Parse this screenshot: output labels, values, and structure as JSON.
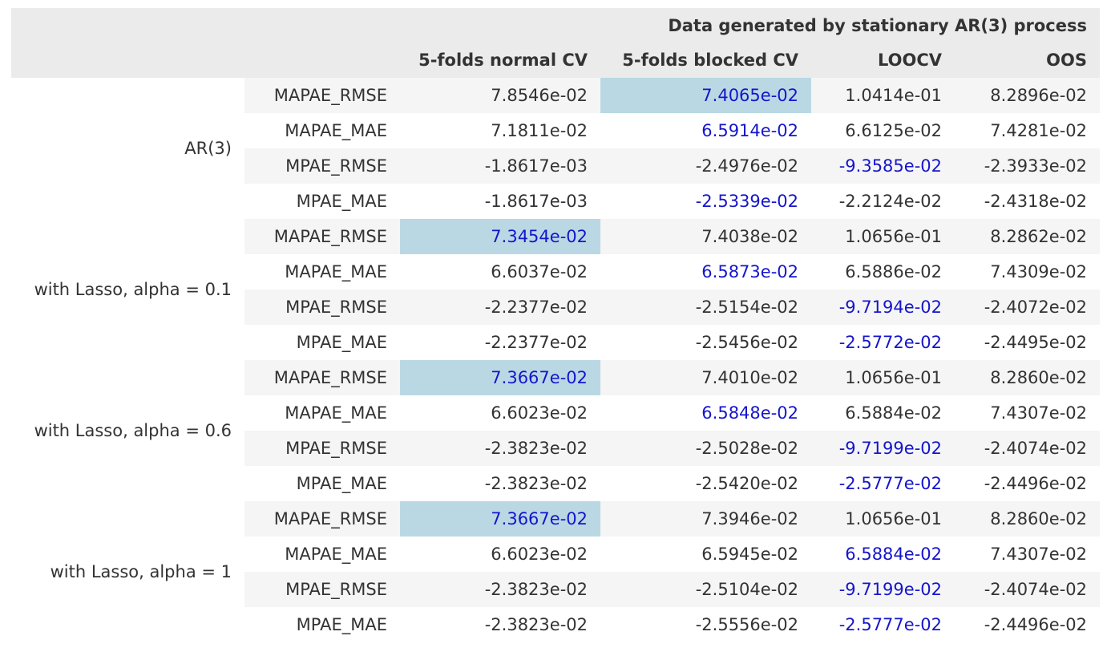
{
  "caption": "Data generated by stationary AR(3) process",
  "columns": [
    "5-folds normal CV",
    "5-folds blocked CV",
    "LOOCV",
    "OOS"
  ],
  "colors": {
    "highlight_bg": "#b9d8e4",
    "best_text": "#1515cc",
    "header_bg": "#ebebeb",
    "stripe_bg": "#f5f5f5"
  },
  "groups": [
    {
      "label": "AR(3)",
      "rows": [
        {
          "metric": "MAPAE_RMSE",
          "values": [
            "7.8546e-02",
            "7.4065e-02",
            "1.0414e-01",
            "8.2896e-02"
          ],
          "best": [
            false,
            true,
            false,
            false
          ],
          "highlight": [
            false,
            true,
            false,
            false
          ]
        },
        {
          "metric": "MAPAE_MAE",
          "values": [
            "7.1811e-02",
            "6.5914e-02",
            "6.6125e-02",
            "7.4281e-02"
          ],
          "best": [
            false,
            true,
            false,
            false
          ],
          "highlight": [
            false,
            false,
            false,
            false
          ]
        },
        {
          "metric": "MPAE_RMSE",
          "values": [
            "-1.8617e-03",
            "-2.4976e-02",
            "-9.3585e-02",
            "-2.3933e-02"
          ],
          "best": [
            false,
            false,
            true,
            false
          ],
          "highlight": [
            false,
            false,
            false,
            false
          ]
        },
        {
          "metric": "MPAE_MAE",
          "values": [
            "-1.8617e-03",
            "-2.5339e-02",
            "-2.2124e-02",
            "-2.4318e-02"
          ],
          "best": [
            false,
            true,
            false,
            false
          ],
          "highlight": [
            false,
            false,
            false,
            false
          ]
        }
      ]
    },
    {
      "label": "with Lasso, alpha = 0.1",
      "rows": [
        {
          "metric": "MAPAE_RMSE",
          "values": [
            "7.3454e-02",
            "7.4038e-02",
            "1.0656e-01",
            "8.2862e-02"
          ],
          "best": [
            true,
            false,
            false,
            false
          ],
          "highlight": [
            true,
            false,
            false,
            false
          ]
        },
        {
          "metric": "MAPAE_MAE",
          "values": [
            "6.6037e-02",
            "6.5873e-02",
            "6.5886e-02",
            "7.4309e-02"
          ],
          "best": [
            false,
            true,
            false,
            false
          ],
          "highlight": [
            false,
            false,
            false,
            false
          ]
        },
        {
          "metric": "MPAE_RMSE",
          "values": [
            "-2.2377e-02",
            "-2.5154e-02",
            "-9.7194e-02",
            "-2.4072e-02"
          ],
          "best": [
            false,
            false,
            true,
            false
          ],
          "highlight": [
            false,
            false,
            false,
            false
          ]
        },
        {
          "metric": "MPAE_MAE",
          "values": [
            "-2.2377e-02",
            "-2.5456e-02",
            "-2.5772e-02",
            "-2.4495e-02"
          ],
          "best": [
            false,
            false,
            true,
            false
          ],
          "highlight": [
            false,
            false,
            false,
            false
          ]
        }
      ]
    },
    {
      "label": "with Lasso, alpha = 0.6",
      "rows": [
        {
          "metric": "MAPAE_RMSE",
          "values": [
            "7.3667e-02",
            "7.4010e-02",
            "1.0656e-01",
            "8.2860e-02"
          ],
          "best": [
            true,
            false,
            false,
            false
          ],
          "highlight": [
            true,
            false,
            false,
            false
          ]
        },
        {
          "metric": "MAPAE_MAE",
          "values": [
            "6.6023e-02",
            "6.5848e-02",
            "6.5884e-02",
            "7.4307e-02"
          ],
          "best": [
            false,
            true,
            false,
            false
          ],
          "highlight": [
            false,
            false,
            false,
            false
          ]
        },
        {
          "metric": "MPAE_RMSE",
          "values": [
            "-2.3823e-02",
            "-2.5028e-02",
            "-9.7199e-02",
            "-2.4074e-02"
          ],
          "best": [
            false,
            false,
            true,
            false
          ],
          "highlight": [
            false,
            false,
            false,
            false
          ]
        },
        {
          "metric": "MPAE_MAE",
          "values": [
            "-2.3823e-02",
            "-2.5420e-02",
            "-2.5777e-02",
            "-2.4496e-02"
          ],
          "best": [
            false,
            false,
            true,
            false
          ],
          "highlight": [
            false,
            false,
            false,
            false
          ]
        }
      ]
    },
    {
      "label": "with Lasso, alpha = 1",
      "rows": [
        {
          "metric": "MAPAE_RMSE",
          "values": [
            "7.3667e-02",
            "7.3946e-02",
            "1.0656e-01",
            "8.2860e-02"
          ],
          "best": [
            true,
            false,
            false,
            false
          ],
          "highlight": [
            true,
            false,
            false,
            false
          ]
        },
        {
          "metric": "MAPAE_MAE",
          "values": [
            "6.6023e-02",
            "6.5945e-02",
            "6.5884e-02",
            "7.4307e-02"
          ],
          "best": [
            false,
            false,
            true,
            false
          ],
          "highlight": [
            false,
            false,
            false,
            false
          ]
        },
        {
          "metric": "MPAE_RMSE",
          "values": [
            "-2.3823e-02",
            "-2.5104e-02",
            "-9.7199e-02",
            "-2.4074e-02"
          ],
          "best": [
            false,
            false,
            true,
            false
          ],
          "highlight": [
            false,
            false,
            false,
            false
          ]
        },
        {
          "metric": "MPAE_MAE",
          "values": [
            "-2.3823e-02",
            "-2.5556e-02",
            "-2.5777e-02",
            "-2.4496e-02"
          ],
          "best": [
            false,
            false,
            true,
            false
          ],
          "highlight": [
            false,
            false,
            false,
            false
          ]
        }
      ]
    }
  ]
}
